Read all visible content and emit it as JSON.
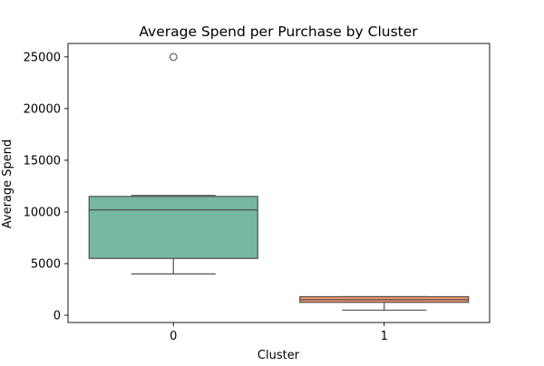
{
  "chart_data": {
    "type": "box",
    "title": "Average Spend per Purchase by Cluster",
    "xlabel": "Cluster",
    "ylabel": "Average Spend",
    "categories": [
      "0",
      "1"
    ],
    "yticks": [
      "0",
      "5000",
      "10000",
      "15000",
      "20000",
      "25000"
    ],
    "ylim": [
      -700,
      26300
    ],
    "grid": false,
    "legend": "none",
    "colors": {
      "box_0": "#76b7a0",
      "box_1": "#f0936b",
      "edge": "#505050",
      "axis": "#000000"
    },
    "boxes": [
      {
        "category": "0",
        "whisker_low": 4000,
        "q1": 5500,
        "median": 10200,
        "q3": 11500,
        "whisker_high": 11600,
        "outliers": [
          25000
        ]
      },
      {
        "category": "1",
        "whisker_low": 500,
        "q1": 1250,
        "median": 1500,
        "q3": 1800,
        "whisker_high": 1800,
        "outliers": []
      }
    ]
  }
}
